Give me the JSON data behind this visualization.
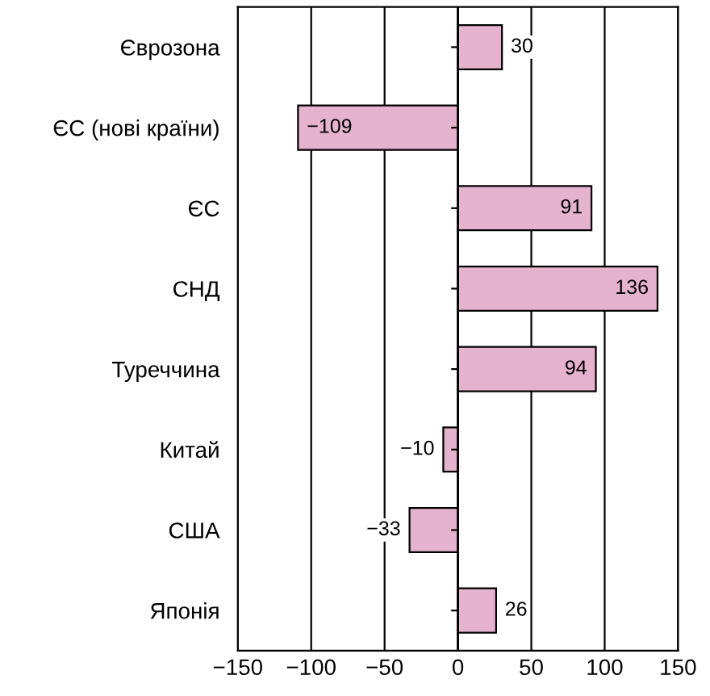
{
  "chart_data": {
    "type": "bar",
    "orientation": "horizontal",
    "categories": [
      "Єврозона",
      "ЄС (нові країни)",
      "ЄС",
      "СНД",
      "Туреччина",
      "Китай",
      "США",
      "Японія"
    ],
    "values": [
      30,
      -109,
      91,
      136,
      94,
      -10,
      -33,
      26
    ],
    "value_labels": [
      "30",
      "−109",
      "91",
      "136",
      "94",
      "−10",
      "−33",
      "26"
    ],
    "color": "#e6b3cf",
    "xlim": [
      -150,
      150
    ],
    "xticks": [
      {
        "value": -150,
        "label": "−150"
      },
      {
        "value": -100,
        "label": "−100"
      },
      {
        "value": -50,
        "label": "−50"
      },
      0,
      50,
      100,
      150
    ],
    "grid": "x"
  }
}
